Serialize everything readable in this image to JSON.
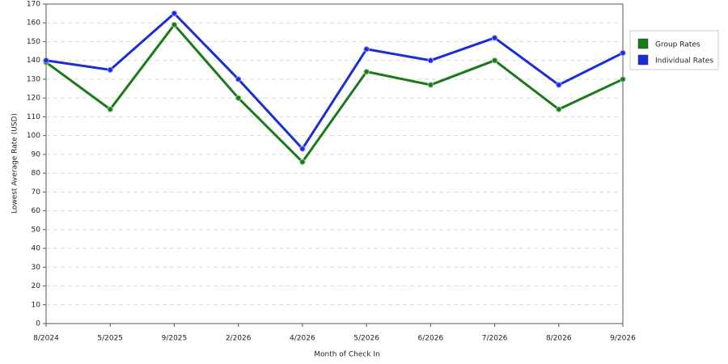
{
  "chart_data": {
    "type": "line",
    "x_label": "Month of Check In",
    "y_label": "Lowest Average Rate (USD)",
    "categories": [
      "8/2024",
      "5/2025",
      "9/2025",
      "2/2026",
      "4/2026",
      "5/2026",
      "6/2026",
      "7/2026",
      "8/2026",
      "9/2026"
    ],
    "series": [
      {
        "name": "Group Rates",
        "color": "#1a7a1a",
        "values": [
          139,
          114,
          159,
          120,
          86,
          134,
          127,
          140,
          114,
          130
        ]
      },
      {
        "name": "Individual Rates",
        "color": "#1a2ed6",
        "values": [
          140,
          135,
          165,
          130,
          93,
          146,
          140,
          152,
          127,
          144
        ]
      }
    ],
    "ylim": [
      0,
      170
    ],
    "yticks": [
      0,
      10,
      20,
      30,
      40,
      50,
      60,
      70,
      80,
      90,
      100,
      110,
      120,
      130,
      140,
      150,
      160,
      170
    ],
    "grid": true,
    "legend": "right"
  }
}
